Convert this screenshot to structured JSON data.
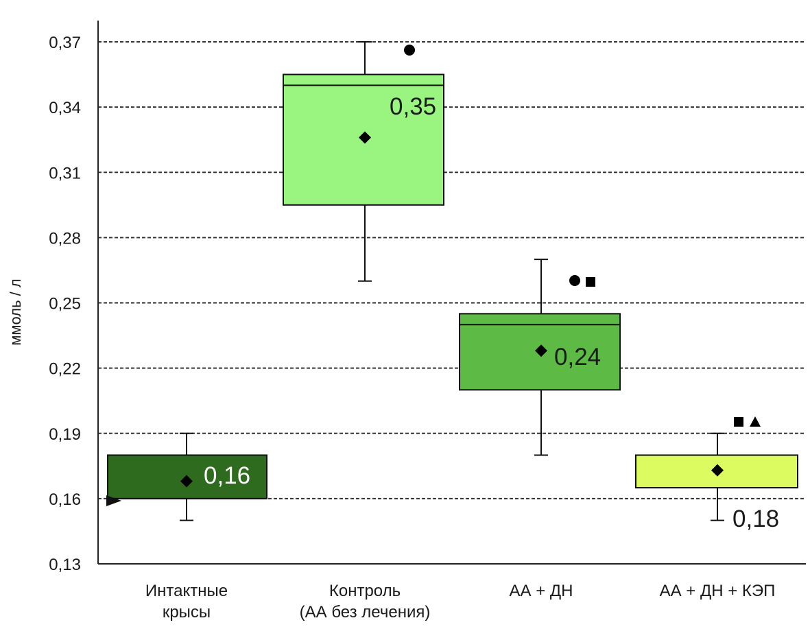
{
  "chart_data": {
    "type": "box",
    "ylabel": "ммоль / л",
    "ylim": [
      0.13,
      0.37
    ],
    "yticks": [
      "0,37",
      "0,34",
      "0,31",
      "0,28",
      "0,25",
      "0,22",
      "0,19",
      "0,16",
      "0,13"
    ],
    "ytick_values": [
      0.37,
      0.34,
      0.31,
      0.28,
      0.25,
      0.22,
      0.19,
      0.16,
      0.13
    ],
    "grid": "horizontal dashed",
    "groups": [
      {
        "category_lines": [
          "Интактные",
          "крысы"
        ],
        "q1": 0.16,
        "q3": 0.18,
        "median": 0.16,
        "mean": 0.168,
        "whisker_low": 0.15,
        "whisker_high": 0.19,
        "label": "0,16",
        "label_color": "#ffffff",
        "fill": "#2f6b1f",
        "markers": []
      },
      {
        "category_lines": [
          "Контроль",
          "(АА без лечения)"
        ],
        "q1": 0.295,
        "q3": 0.355,
        "median": 0.35,
        "mean": 0.326,
        "whisker_low": 0.26,
        "whisker_high": 0.37,
        "label": "0,35",
        "label_color": "#1a1a1a",
        "fill": "#99f57f",
        "markers": [
          "circle"
        ]
      },
      {
        "category_lines": [
          "АА + ДН"
        ],
        "q1": 0.21,
        "q3": 0.245,
        "median": 0.24,
        "mean": 0.228,
        "whisker_low": 0.18,
        "whisker_high": 0.27,
        "label": "0,24",
        "label_color": "#1a1a1a",
        "fill": "#5dbb45",
        "markers": [
          "circle",
          "square"
        ]
      },
      {
        "category_lines": [
          "АА + ДН + КЭП"
        ],
        "q1": 0.165,
        "q3": 0.18,
        "median": 0.18,
        "mean": 0.173,
        "whisker_low": 0.15,
        "whisker_high": 0.19,
        "label": "0,18",
        "label_color": "#1a1a1a",
        "fill": "#dcfb61",
        "markers": [
          "square",
          "triangle"
        ]
      }
    ]
  }
}
